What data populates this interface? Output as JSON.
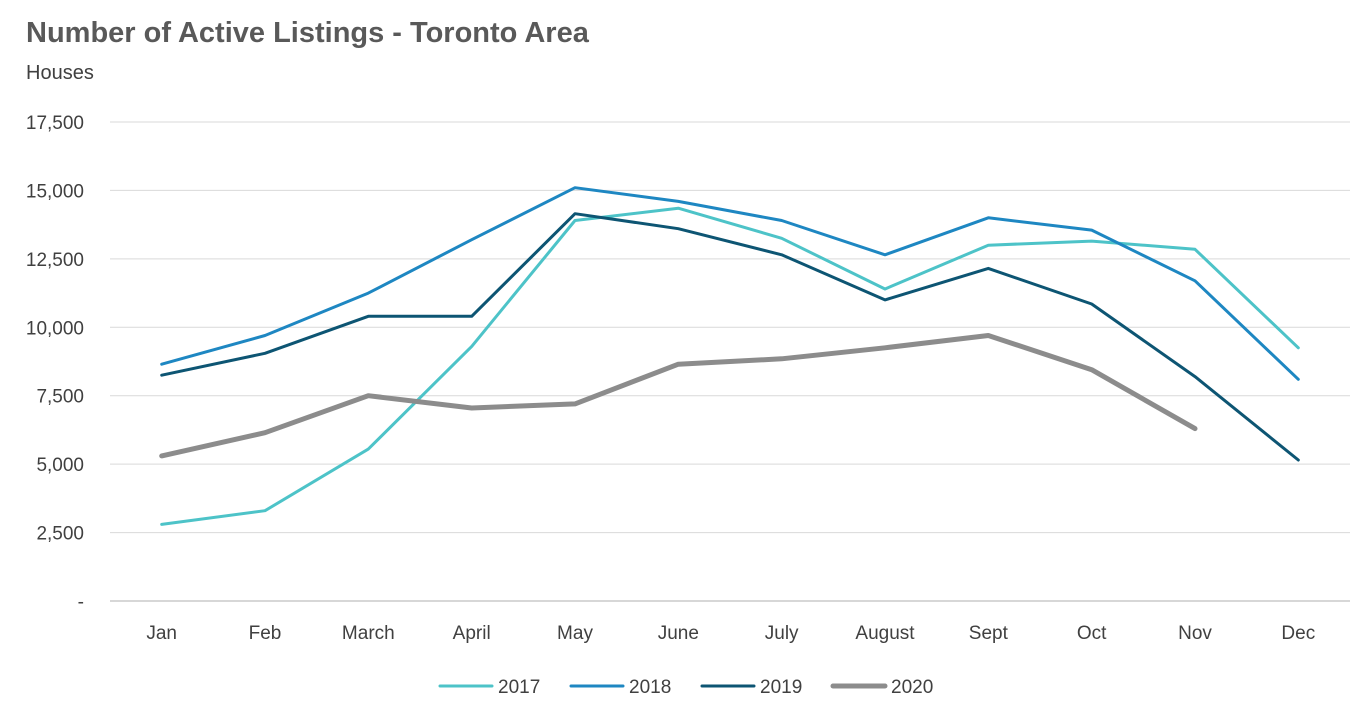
{
  "chart_data": {
    "type": "line",
    "title": "Number of Active Listings - Toronto Area",
    "subtitle": "Houses",
    "xlabel": "",
    "ylabel": "",
    "ylim": [
      0,
      17500
    ],
    "yticks": [
      0,
      2500,
      5000,
      7500,
      10000,
      12500,
      15000,
      17500
    ],
    "ytick_labels": [
      "-",
      "2,500",
      "5,000",
      "7,500",
      "10,000",
      "12,500",
      "15,000",
      "17,500"
    ],
    "grid": true,
    "legend_position": "bottom",
    "categories": [
      "Jan",
      "Feb",
      "March",
      "April",
      "May",
      "June",
      "July",
      "August",
      "Sept",
      "Oct",
      "Nov",
      "Dec"
    ],
    "series": [
      {
        "name": "2017",
        "color": "#4dc3c8",
        "values": [
          2800,
          3300,
          5550,
          9300,
          13900,
          14350,
          13250,
          11400,
          13000,
          13150,
          12850,
          9250
        ]
      },
      {
        "name": "2018",
        "color": "#1e87c2",
        "values": [
          8650,
          9700,
          11250,
          13200,
          15100,
          14600,
          13900,
          12650,
          14000,
          13550,
          11700,
          8100
        ]
      },
      {
        "name": "2019",
        "color": "#0d5573",
        "values": [
          8250,
          9050,
          10400,
          10400,
          14150,
          13600,
          12650,
          11000,
          12150,
          10850,
          8200,
          5150
        ]
      },
      {
        "name": "2020",
        "color": "#8c8c8c",
        "values": [
          5300,
          6150,
          7500,
          7050,
          7200,
          8650,
          8850,
          9250,
          9700,
          8450,
          6300,
          null
        ]
      }
    ]
  }
}
